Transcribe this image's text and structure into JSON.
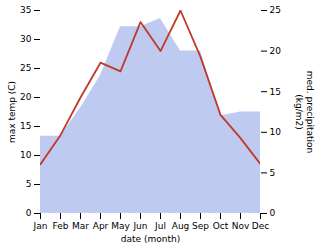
{
  "chart_data": {
    "type": "line",
    "xlabel": "date (month)",
    "ylabel": "max temp (C)",
    "y2label": "med. precipitation\n(kg/m2)",
    "categories": [
      "Jan",
      "Feb",
      "Mar",
      "Apr",
      "May",
      "Jun",
      "Jul",
      "Aug",
      "Sep",
      "Oct",
      "Nov",
      "Dec"
    ],
    "series": [
      {
        "type": "line",
        "color": "#c0392b",
        "values": [
          8.5,
          13.5,
          20.0,
          26.0,
          24.5,
          33.0,
          28.0,
          35.0,
          27.0,
          17.0,
          13.0,
          8.5
        ]
      },
      {
        "type": "area",
        "axis": "y2",
        "color": "#b8c4ee",
        "values": [
          9.5,
          9.5,
          13.0,
          17.0,
          23.0,
          23.0,
          24.0,
          20.0,
          20.0,
          12.0,
          12.5,
          12.5
        ]
      }
    ],
    "ylim": [
      0,
      35
    ],
    "yticks": [
      0,
      5,
      10,
      15,
      20,
      25,
      30,
      35
    ],
    "y2lim": [
      0,
      25
    ],
    "y2ticks": [
      0,
      5,
      10,
      15,
      20,
      25
    ],
    "grid": false
  }
}
